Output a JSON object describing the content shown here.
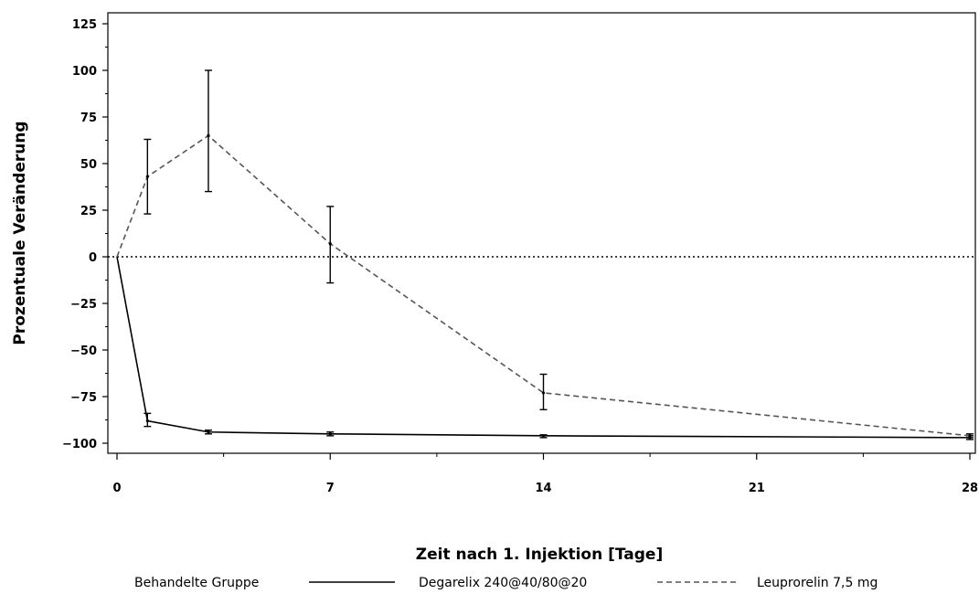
{
  "chart_data": {
    "type": "line",
    "title": "",
    "xlabel": "Zeit nach 1. Injektion [Tage]",
    "ylabel": "Prozentuale Veränderung",
    "xlim": [
      0,
      28
    ],
    "ylim": [
      -105,
      130
    ],
    "x_ticks": [
      0,
      7,
      14,
      21,
      28
    ],
    "y_ticks": [
      125,
      100,
      75,
      50,
      25,
      0,
      -25,
      -50,
      -75,
      -100
    ],
    "reference_line": {
      "y": 0,
      "style": "dotted"
    },
    "legend": {
      "title": "Behandelte Gruppe",
      "placement": "bottom"
    },
    "series": [
      {
        "name": "Degarelix 240@40/80@20",
        "style": "solid",
        "color": "#000000",
        "points": [
          {
            "x": 0,
            "y": 0
          },
          {
            "x": 1,
            "y": -88,
            "lo": -91,
            "hi": -84
          },
          {
            "x": 3,
            "y": -94,
            "lo": -95,
            "hi": -93
          },
          {
            "x": 7,
            "y": -95,
            "lo": -96,
            "hi": -94
          },
          {
            "x": 14,
            "y": -96,
            "lo": -97,
            "hi": -95.5
          },
          {
            "x": 28,
            "y": -97,
            "lo": -98,
            "hi": -96
          }
        ]
      },
      {
        "name": "Leuprorelin 7,5 mg",
        "style": "dashed",
        "color": "#555555",
        "points": [
          {
            "x": 0,
            "y": 0
          },
          {
            "x": 1,
            "y": 43,
            "lo": 23,
            "hi": 63
          },
          {
            "x": 3,
            "y": 65,
            "lo": 35,
            "hi": 100
          },
          {
            "x": 7,
            "y": 7,
            "lo": -14,
            "hi": 27
          },
          {
            "x": 14,
            "y": -73,
            "lo": -82,
            "hi": -63
          },
          {
            "x": 28,
            "y": -96,
            "lo": -97,
            "hi": -95
          }
        ]
      }
    ]
  }
}
